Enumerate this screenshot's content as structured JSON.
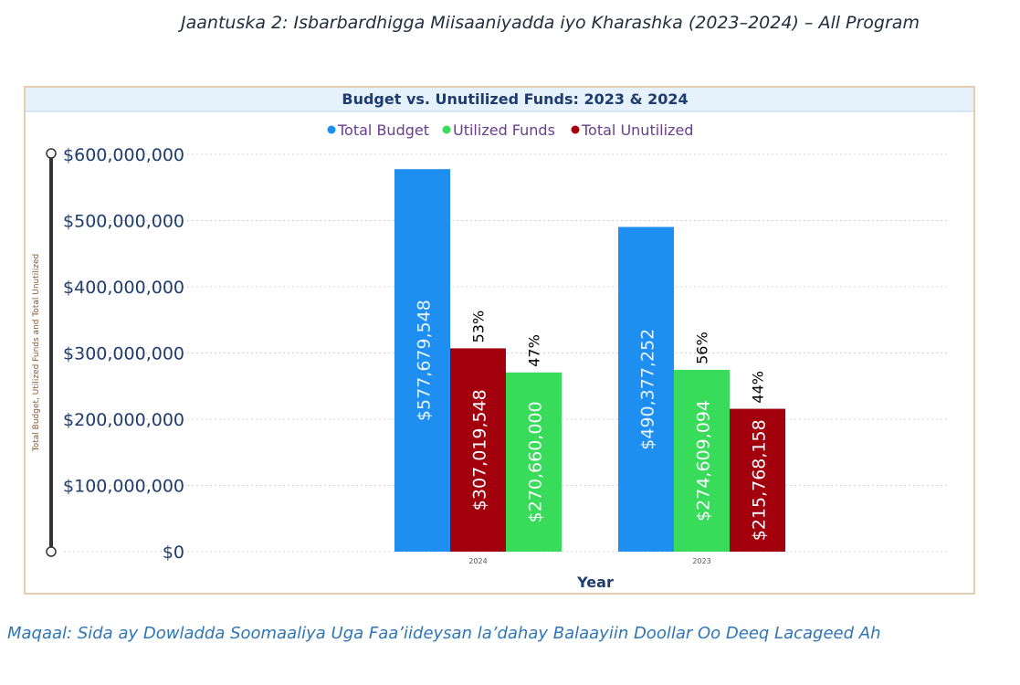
{
  "captions": {
    "top": "Jaantuska 2: Isbarbardhigga Miisaaniyadda iyo Kharashka (2023–2024) – All Program",
    "bottom": "Maqaal: Sida ay Dowladda Soomaaliya Uga Faa’iideysan la’dahay Balaayiin Doollar Oo Deeq Lacageed Ah"
  },
  "chart_data": {
    "type": "bar",
    "title": "Budget vs. Unutilized Funds: 2023 & 2024",
    "xlabel": "Year",
    "ylabel": "Total Budget, Utilized Funds and Total Unutilized",
    "categories": [
      "2024",
      "2023"
    ],
    "ylim": [
      0,
      600000000
    ],
    "yticks": [
      0,
      100000000,
      200000000,
      300000000,
      400000000,
      500000000,
      600000000
    ],
    "ytick_labels": [
      "$0",
      "$100,000,000",
      "$200,000,000",
      "$300,000,000",
      "$400,000,000",
      "$500,000,000",
      "$600,000,000"
    ],
    "grid": true,
    "legend_position": "top-center",
    "series": [
      {
        "name": "Total Budget",
        "color": "#1e8ff0",
        "values": [
          577679548,
          490377252
        ],
        "labels": [
          "$577,679,548",
          "$490,377,252"
        ],
        "pct_labels": [
          "",
          ""
        ]
      },
      {
        "name": "Utilized Funds",
        "color": "#39db5b",
        "values": [
          270660000,
          274609094
        ],
        "labels": [
          "$270,660,000",
          "$274,609,094"
        ],
        "pct_labels": [
          "47%",
          "56%"
        ]
      },
      {
        "name": "Total Unutilized",
        "color": "#a3000e",
        "values": [
          307019548,
          215768158
        ],
        "labels": [
          "$307,019,548",
          "$215,768,158"
        ],
        "pct_labels": [
          "53%",
          "44%"
        ]
      }
    ],
    "bar_order": [
      [
        0,
        2,
        1
      ],
      [
        0,
        1,
        2
      ]
    ]
  }
}
